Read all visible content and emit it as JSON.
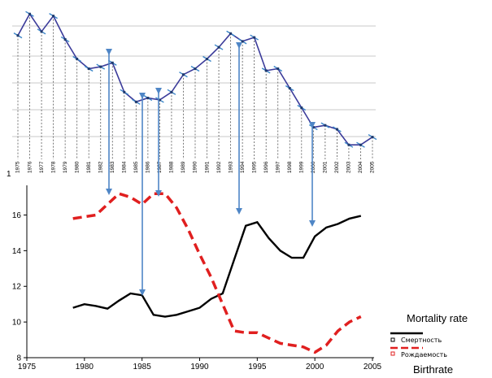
{
  "chart_data": [
    {
      "type": "line",
      "x_labels": [
        "1975",
        "1976",
        "1977",
        "1978",
        "1979",
        "1980",
        "1981",
        "1982",
        "1983",
        "1984",
        "1985",
        "1986",
        "1987",
        "1988",
        "1989",
        "1990",
        "1991",
        "1992",
        "1993",
        "1994",
        "1995",
        "1996",
        "1997",
        "1998",
        "1999",
        "2000",
        "2001",
        "2002",
        "2003",
        "2004",
        "2005"
      ],
      "series": [
        {
          "color": "#3b3b9a",
          "values": [
            15.2,
            16.3,
            15.4,
            16.2,
            15.0,
            14.0,
            13.5,
            13.6,
            13.8,
            12.3,
            11.8,
            12.0,
            11.9,
            12.3,
            13.2,
            13.5,
            14.0,
            14.6,
            15.3,
            14.9,
            15.1,
            13.4,
            13.5,
            12.5,
            11.5,
            10.5,
            10.6,
            10.4,
            9.6,
            9.6,
            10.0
          ]
        }
      ],
      "ylim": [
        8.9,
        16.6
      ],
      "grid": true
    },
    {
      "type": "line",
      "x_ticks": [
        1975,
        1980,
        1985,
        1990,
        1995,
        2000,
        2005
      ],
      "y_ticks": [
        8,
        10,
        12,
        14,
        16
      ],
      "xlim": [
        1975,
        2005
      ],
      "ylim": [
        8,
        17.8
      ],
      "series": [
        {
          "name": "Смертность",
          "label_en": "Mortality rate",
          "color": "#000000",
          "style": "solid",
          "x": [
            1979,
            1980,
            1981,
            1982,
            1983,
            1984,
            1985,
            1986,
            1987,
            1988,
            1989,
            1990,
            1991,
            1992,
            1993,
            1994,
            1995,
            1996,
            1997,
            1998,
            1999,
            2000,
            2001,
            2002,
            2003,
            2004
          ],
          "values": [
            10.8,
            11.0,
            10.9,
            10.75,
            11.2,
            11.6,
            11.5,
            10.4,
            10.3,
            10.4,
            10.6,
            10.8,
            11.3,
            11.6,
            13.5,
            15.4,
            15.6,
            14.7,
            14.0,
            13.6,
            13.6,
            14.8,
            15.3,
            15.5,
            15.8,
            15.95
          ]
        },
        {
          "name": "Рождаемость",
          "label_en": "Birthrate",
          "color": "#e01f1f",
          "style": "dashed",
          "x": [
            1979,
            1980,
            1981,
            1982,
            1983,
            1984,
            1985,
            1986,
            1987,
            1988,
            1989,
            1990,
            1991,
            1992,
            1993,
            1994,
            1995,
            1996,
            1997,
            1998,
            1999,
            2000,
            2001,
            2002,
            2003,
            2004
          ],
          "values": [
            15.8,
            15.9,
            16.0,
            16.6,
            17.2,
            17.0,
            16.6,
            17.2,
            17.2,
            16.4,
            15.2,
            13.8,
            12.5,
            11.0,
            9.5,
            9.4,
            9.4,
            9.1,
            8.8,
            8.7,
            8.6,
            8.3,
            8.7,
            9.5,
            10.0,
            10.3
          ]
        }
      ],
      "legend_position": "right"
    }
  ],
  "ui": {
    "corner_label": "1"
  }
}
